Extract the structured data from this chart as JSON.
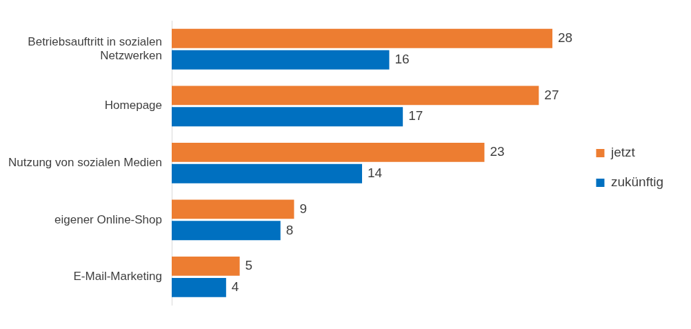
{
  "chart_data": {
    "type": "bar",
    "orientation": "horizontal",
    "categories": [
      "Betriebsauftritt in sozialen Netzwerken",
      "Homepage",
      "Nutzung von sozialen Medien",
      "eigener Online-Shop",
      "E-Mail-Marketing"
    ],
    "series": [
      {
        "name": "jetzt",
        "color": "#ed7d31",
        "values": [
          28,
          27,
          23,
          9,
          5
        ]
      },
      {
        "name": "zukünftig",
        "color": "#0070c0",
        "values": [
          16,
          17,
          14,
          8,
          4
        ]
      }
    ],
    "data_labels": true,
    "legend": "right",
    "grid": false
  }
}
